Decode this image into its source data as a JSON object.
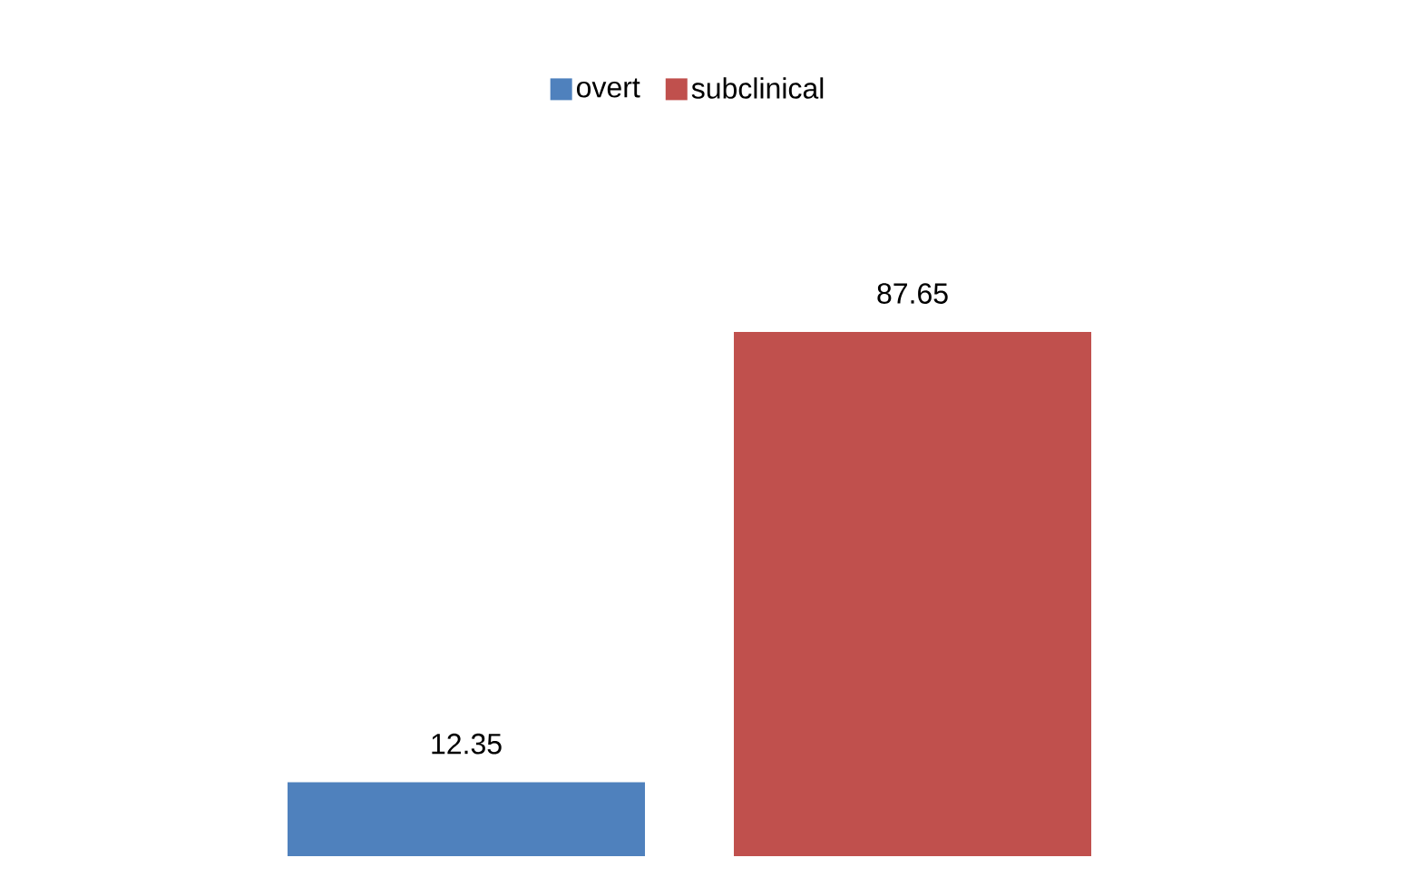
{
  "chart_data": {
    "type": "bar",
    "categories": [
      null
    ],
    "series": [
      {
        "name": "overt",
        "color": "#4f81bd",
        "values": [
          12.35
        ]
      },
      {
        "name": "subclinical",
        "color": "#c0504d",
        "values": [
          87.65
        ]
      }
    ],
    "data_labels": true,
    "legend": "top",
    "grid": false
  }
}
